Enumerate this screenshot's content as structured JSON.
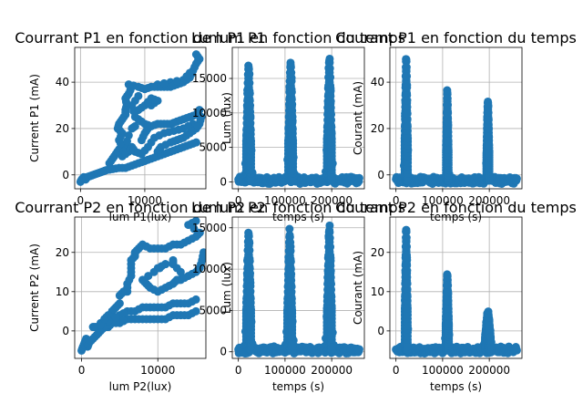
{
  "style": {
    "point_color": "#1f77b4",
    "grid_color": "#b0b0b0"
  },
  "chart_data": [
    {
      "type": "scatter",
      "title": "Courrant P1 en fonction de lum P1",
      "xlabel": "lum P1(lux)",
      "ylabel": "Current P1 (mA)",
      "xlim": [
        -900,
        19500
      ],
      "ylim": [
        -6,
        55
      ],
      "xticks": [
        0,
        10000
      ],
      "xtick_labels": [
        "0",
        "10000"
      ],
      "yticks": [
        0,
        20,
        40
      ],
      "ytick_labels": [
        "0",
        "20",
        "40"
      ],
      "grid": true,
      "points": [
        [
          0,
          -3
        ],
        [
          200,
          -2
        ],
        [
          500,
          -1
        ],
        [
          800,
          -2
        ],
        [
          1000,
          -1
        ],
        [
          1500,
          -0.5
        ],
        [
          2000,
          0
        ],
        [
          2500,
          0.5
        ],
        [
          3000,
          1
        ],
        [
          3500,
          1.5
        ],
        [
          4000,
          2
        ],
        [
          5000,
          2.5
        ],
        [
          6000,
          3
        ],
        [
          7000,
          3
        ],
        [
          8000,
          4
        ],
        [
          9000,
          5
        ],
        [
          10000,
          6
        ],
        [
          11000,
          7
        ],
        [
          12000,
          8
        ],
        [
          13000,
          9
        ],
        [
          14000,
          10
        ],
        [
          15000,
          11
        ],
        [
          16000,
          12
        ],
        [
          17000,
          13
        ],
        [
          18000,
          14
        ],
        [
          4500,
          5
        ],
        [
          5000,
          7
        ],
        [
          5500,
          9
        ],
        [
          6000,
          11
        ],
        [
          6500,
          12
        ],
        [
          6000,
          15
        ],
        [
          6500,
          18
        ],
        [
          5800,
          20
        ],
        [
          6000,
          22
        ],
        [
          6500,
          24
        ],
        [
          7000,
          26
        ],
        [
          7000,
          28
        ],
        [
          7200,
          30
        ],
        [
          7000,
          33
        ],
        [
          7500,
          35
        ],
        [
          8000,
          38
        ],
        [
          7500,
          39
        ],
        [
          9000,
          38
        ],
        [
          10000,
          37
        ],
        [
          11000,
          38
        ],
        [
          12000,
          38
        ],
        [
          13000,
          38
        ],
        [
          14000,
          38
        ],
        [
          15000,
          39
        ],
        [
          16000,
          40
        ],
        [
          17000,
          42
        ],
        [
          17500,
          45
        ],
        [
          18000,
          48
        ],
        [
          18500,
          50
        ],
        [
          18000,
          52
        ],
        [
          17000,
          44
        ],
        [
          16000,
          41
        ],
        [
          14000,
          40
        ],
        [
          12000,
          39
        ],
        [
          9000,
          24
        ],
        [
          10000,
          22
        ],
        [
          11000,
          21
        ],
        [
          12000,
          22
        ],
        [
          13000,
          22
        ],
        [
          14000,
          22
        ],
        [
          15000,
          23
        ],
        [
          16000,
          24
        ],
        [
          17000,
          25
        ],
        [
          18000,
          26
        ],
        [
          18500,
          28
        ],
        [
          8000,
          20
        ],
        [
          8500,
          21
        ],
        [
          11000,
          30
        ],
        [
          12000,
          32
        ],
        [
          11000,
          33
        ],
        [
          10000,
          30
        ],
        [
          9000,
          28
        ],
        [
          9500,
          15
        ],
        [
          10000,
          18
        ],
        [
          10500,
          20
        ],
        [
          12000,
          10
        ],
        [
          12500,
          12
        ],
        [
          14000,
          14
        ],
        [
          15000,
          15
        ],
        [
          16000,
          16
        ],
        [
          17000,
          18
        ],
        [
          18000,
          20
        ],
        [
          18500,
          22
        ],
        [
          18800,
          25
        ],
        [
          8500,
          25
        ],
        [
          8000,
          30
        ],
        [
          9000,
          34
        ],
        [
          7500,
          17
        ],
        [
          7000,
          12
        ],
        [
          6500,
          8
        ],
        [
          7500,
          10
        ],
        [
          8000,
          12
        ],
        [
          8500,
          10
        ],
        [
          9500,
          9
        ],
        [
          10500,
          12
        ],
        [
          11500,
          16
        ],
        [
          13000,
          18
        ],
        [
          14500,
          19
        ],
        [
          16000,
          20
        ],
        [
          17500,
          22
        ]
      ]
    },
    {
      "type": "scatter",
      "title": "Lum P1 en fonction du temps",
      "xlabel": "temps (s)",
      "ylabel": "Lum (lux)",
      "xlim": [
        -13000,
        270000
      ],
      "ylim": [
        -1000,
        19500
      ],
      "xticks": [
        0,
        100000,
        200000
      ],
      "xtick_labels": [
        "0",
        "100000",
        "200000"
      ],
      "yticks": [
        0,
        5000,
        10000,
        15000
      ],
      "ytick_labels": [
        "0",
        "5000",
        "10000",
        "15000"
      ],
      "grid": true,
      "peaks": [
        {
          "x": 22000,
          "height": 17300,
          "width": 14000
        },
        {
          "x": 112000,
          "height": 17600,
          "width": 14000
        },
        {
          "x": 195000,
          "height": 18300,
          "width": 14000
        }
      ],
      "range": [
        0,
        258000
      ]
    },
    {
      "type": "scatter",
      "title": "Courant P1 en fonction du temps",
      "xlabel": "temps (s)",
      "ylabel": "Courant (mA)",
      "xlim": [
        -13000,
        270000
      ],
      "ylim": [
        -6,
        55
      ],
      "xticks": [
        0,
        100000,
        200000
      ],
      "xtick_labels": [
        "0",
        "100000",
        "200000"
      ],
      "yticks": [
        0,
        20,
        40
      ],
      "ytick_labels": [
        "0",
        "20",
        "40"
      ],
      "grid": true,
      "peaks": [
        {
          "x": 22000,
          "height": 52,
          "width": 9000
        },
        {
          "x": 110000,
          "height": 37,
          "width": 7000
        },
        {
          "x": 197000,
          "height": 33,
          "width": 8000
        }
      ],
      "range": [
        0,
        258000
      ]
    },
    {
      "type": "scatter",
      "title": "Courrant P2 en fonction de lum P2",
      "xlabel": "lum P2(lux)",
      "ylabel": "Current P2 (mA)",
      "xlim": [
        -900,
        16300
      ],
      "ylim": [
        -7,
        29
      ],
      "xticks": [
        0,
        10000
      ],
      "xtick_labels": [
        "0",
        "10000"
      ],
      "yticks": [
        0,
        10,
        20
      ],
      "ytick_labels": [
        "0",
        "10",
        "20"
      ],
      "grid": true,
      "points": [
        [
          0,
          -5
        ],
        [
          200,
          -4
        ],
        [
          400,
          -3
        ],
        [
          600,
          -2
        ],
        [
          800,
          -4
        ],
        [
          1000,
          -3
        ],
        [
          1500,
          -2
        ],
        [
          2000,
          -1
        ],
        [
          2500,
          0
        ],
        [
          3000,
          1
        ],
        [
          3500,
          1
        ],
        [
          4000,
          2
        ],
        [
          5000,
          2
        ],
        [
          6000,
          3
        ],
        [
          7000,
          3
        ],
        [
          8000,
          3
        ],
        [
          9000,
          3
        ],
        [
          10000,
          3
        ],
        [
          11000,
          3
        ],
        [
          12000,
          4
        ],
        [
          13000,
          4
        ],
        [
          14000,
          4
        ],
        [
          15000,
          5
        ],
        [
          1500,
          1
        ],
        [
          2000,
          1
        ],
        [
          3000,
          2
        ],
        [
          4000,
          3
        ],
        [
          5000,
          4
        ],
        [
          6000,
          5
        ],
        [
          7000,
          5
        ],
        [
          8000,
          6
        ],
        [
          9000,
          6
        ],
        [
          10000,
          6
        ],
        [
          11000,
          6
        ],
        [
          12000,
          7
        ],
        [
          13000,
          7
        ],
        [
          14000,
          7
        ],
        [
          15000,
          8
        ],
        [
          5000,
          9
        ],
        [
          5500,
          10
        ],
        [
          6000,
          10
        ],
        [
          6000,
          12
        ],
        [
          6500,
          14
        ],
        [
          6500,
          16
        ],
        [
          6500,
          18
        ],
        [
          7000,
          19
        ],
        [
          7000,
          20
        ],
        [
          7500,
          21
        ],
        [
          8000,
          22
        ],
        [
          9000,
          21
        ],
        [
          10000,
          21
        ],
        [
          11000,
          21
        ],
        [
          12000,
          22
        ],
        [
          13000,
          22
        ],
        [
          14000,
          23
        ],
        [
          15000,
          24
        ],
        [
          15500,
          25
        ],
        [
          14000,
          27
        ],
        [
          15000,
          28
        ],
        [
          13000,
          15
        ],
        [
          12000,
          17
        ],
        [
          12000,
          18
        ],
        [
          10000,
          16
        ],
        [
          11000,
          17
        ],
        [
          9500,
          15
        ],
        [
          8000,
          13
        ],
        [
          8500,
          12
        ],
        [
          9000,
          11
        ],
        [
          10000,
          10
        ],
        [
          11000,
          11
        ],
        [
          12000,
          12
        ],
        [
          12500,
          13
        ],
        [
          13000,
          13
        ],
        [
          14000,
          14
        ],
        [
          15000,
          15
        ],
        [
          15500,
          16
        ],
        [
          15800,
          18
        ],
        [
          16000,
          20
        ],
        [
          4000,
          5
        ],
        [
          4500,
          6
        ],
        [
          5000,
          7
        ],
        [
          3000,
          3
        ],
        [
          3500,
          4
        ],
        [
          2500,
          2
        ]
      ]
    },
    {
      "type": "scatter",
      "title": "Lum P2 en fonction du temps",
      "xlabel": "temps (s)",
      "ylabel": "Lum (lux)",
      "xlim": [
        -13000,
        270000
      ],
      "ylim": [
        -800,
        16300
      ],
      "xticks": [
        0,
        100000,
        200000
      ],
      "xtick_labels": [
        "0",
        "100000",
        "200000"
      ],
      "yticks": [
        0,
        5000,
        10000,
        15000
      ],
      "ytick_labels": [
        "0",
        "5000",
        "10000",
        "15000"
      ],
      "grid": true,
      "peaks": [
        {
          "x": 22000,
          "height": 14800,
          "width": 14000
        },
        {
          "x": 110000,
          "height": 14700,
          "width": 14000
        },
        {
          "x": 195000,
          "height": 15300,
          "width": 14000
        }
      ],
      "range": [
        0,
        258000
      ]
    },
    {
      "type": "scatter",
      "title": "Courant P2 en fonction du temps",
      "xlabel": "temps (s)",
      "ylabel": "Courant (mA)",
      "xlim": [
        -13000,
        270000
      ],
      "ylim": [
        -7,
        29
      ],
      "xticks": [
        0,
        100000,
        200000
      ],
      "xtick_labels": [
        "0",
        "100000",
        "200000"
      ],
      "yticks": [
        0,
        10,
        20
      ],
      "ytick_labels": [
        "0",
        "10",
        "20"
      ],
      "grid": true,
      "peaks": [
        {
          "x": 22000,
          "height": 27,
          "width": 8000
        },
        {
          "x": 110000,
          "height": 15,
          "width": 9000
        },
        {
          "x": 197000,
          "height": 5,
          "width": 16000
        }
      ],
      "range": [
        0,
        258000
      ]
    }
  ]
}
